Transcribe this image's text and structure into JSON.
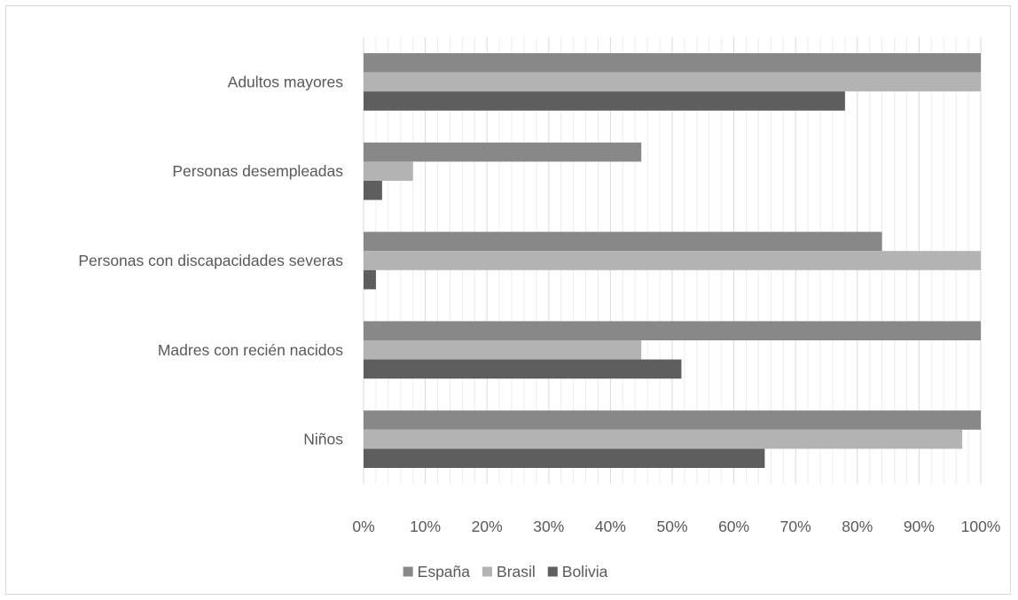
{
  "chart_data": {
    "type": "bar",
    "orientation": "horizontal",
    "categories": [
      "Adultos mayores",
      "Personas desempleadas",
      "Personas con discapacidades severas",
      "Madres con recién nacidos",
      "Niños"
    ],
    "series": [
      {
        "name": "España",
        "values": [
          100,
          45,
          84,
          100,
          100
        ],
        "color": "#888888"
      },
      {
        "name": "Brasil",
        "values": [
          100,
          8,
          100,
          45,
          97
        ],
        "color": "#b3b3b3"
      },
      {
        "name": "Bolivia",
        "values": [
          78,
          3,
          2,
          51.5,
          65
        ],
        "color": "#5e5e5e"
      }
    ],
    "xlim": [
      0,
      100
    ],
    "x_ticks": [
      "0%",
      "10%",
      "20%",
      "30%",
      "40%",
      "50%",
      "60%",
      "70%",
      "80%",
      "90%",
      "100%"
    ],
    "grid": "vertical major and minor gridlines",
    "legend_position": "bottom",
    "title": "",
    "xlabel": "",
    "ylabel": ""
  }
}
